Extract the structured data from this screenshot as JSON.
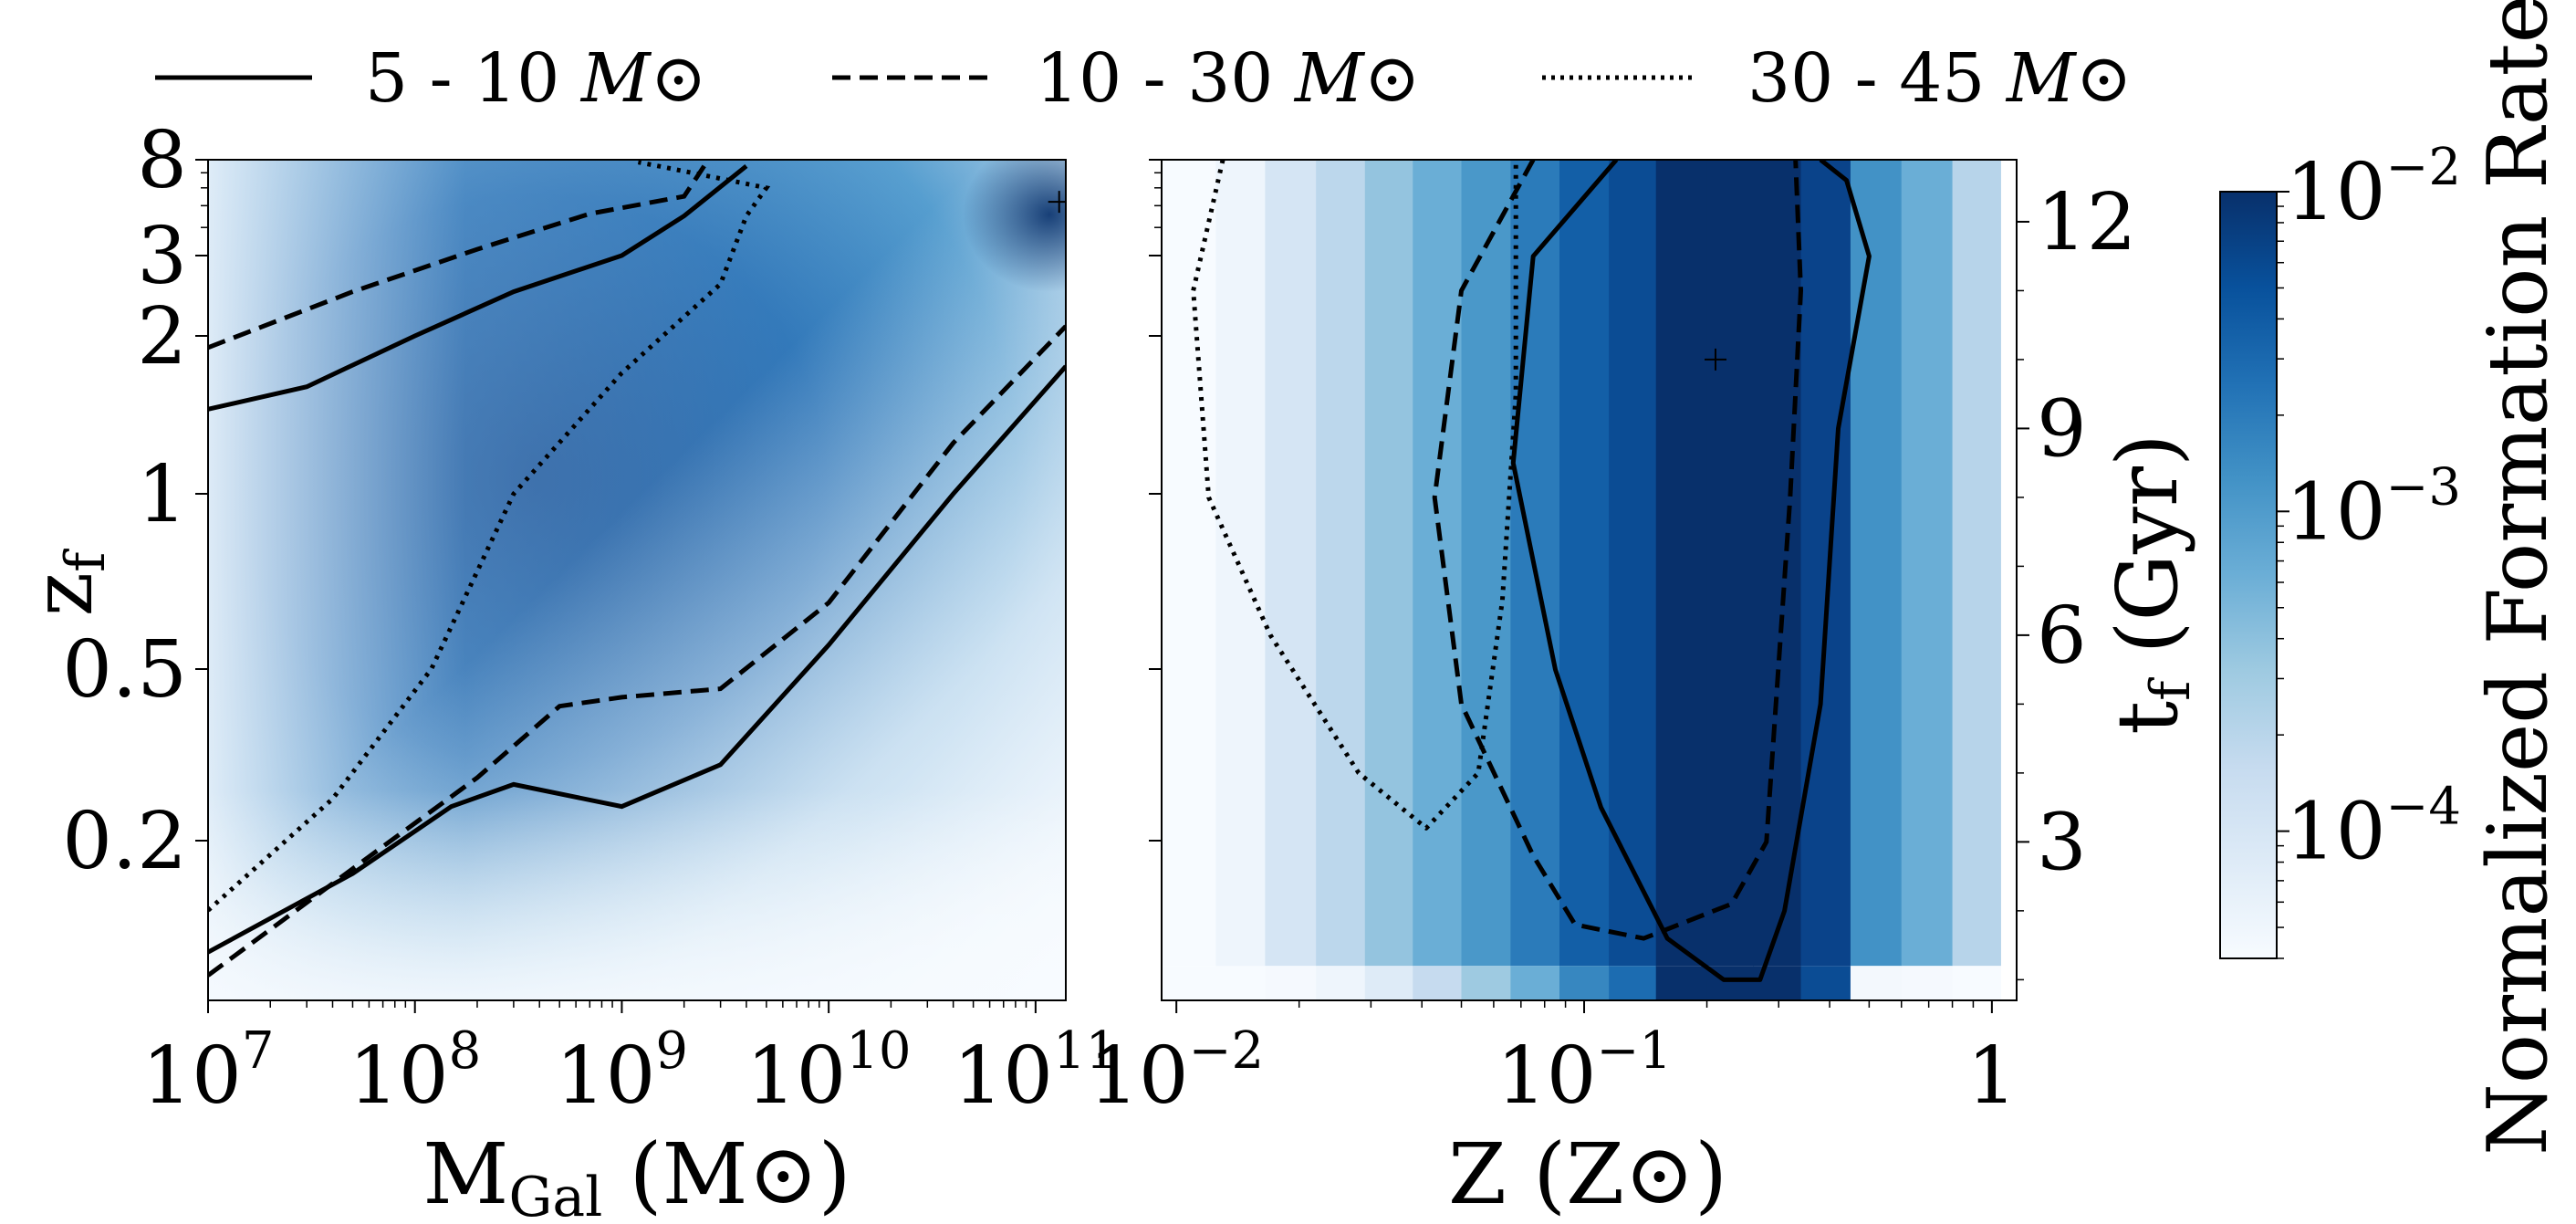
{
  "chart_data": [
    {
      "type": "heatmap",
      "panel": "left",
      "xlabel": "M",
      "xlabel_sub": "Gal",
      "xlabel_unit": "(M⊙)",
      "ylabel": "z",
      "ylabel_sub": "f",
      "xscale": "log",
      "xlim": [
        10000000,
        140000000000
      ],
      "ylim": [
        0.12,
        8
      ],
      "x_ticks": [
        {
          "base": "10",
          "exp": "7",
          "value": 10000000
        },
        {
          "base": "10",
          "exp": "8",
          "value": 100000000
        },
        {
          "base": "10",
          "exp": "9",
          "value": 1000000000
        },
        {
          "base": "10",
          "exp": "10",
          "value": 10000000000
        },
        {
          "base": "10",
          "exp": "11",
          "value": 100000000000
        }
      ],
      "y_ticks": [
        "8",
        "3",
        "2",
        "1",
        "0.5",
        "0.2"
      ],
      "peak_marker": "+",
      "contours": [
        {
          "mass_bin": "5 - 10",
          "style": "solid",
          "level": "upper",
          "points": [
            [
              10000000,
              1.45
            ],
            [
              30000000,
              1.6
            ],
            [
              100000000,
              2.0
            ],
            [
              300000000,
              2.5
            ],
            [
              1000000000,
              3.0
            ],
            [
              2000000000,
              4.5
            ],
            [
              4000000000,
              7.5
            ]
          ]
        },
        {
          "mass_bin": "5 - 10",
          "style": "solid",
          "level": "lower",
          "points": [
            [
              10000000,
              0.14
            ],
            [
              50000000,
              0.18
            ],
            [
              150000000,
              0.24
            ],
            [
              300000000,
              0.27
            ],
            [
              1000000000,
              0.24
            ],
            [
              3000000000,
              0.3
            ],
            [
              10000000000,
              0.55
            ],
            [
              40000000000,
              1.0
            ],
            [
              140000000000,
              1.75
            ]
          ]
        },
        {
          "mass_bin": "10 - 30",
          "style": "dashed",
          "level": "upper",
          "points": [
            [
              10000000,
              1.9
            ],
            [
              50000000,
              2.5
            ],
            [
              200000000,
              3.2
            ],
            [
              700000000,
              4.6
            ],
            [
              2000000000,
              5.5
            ],
            [
              2500000000,
              7.5
            ]
          ]
        },
        {
          "mass_bin": "10 - 30",
          "style": "dashed",
          "level": "lower",
          "points": [
            [
              10000000,
              0.13
            ],
            [
              60000000,
              0.19
            ],
            [
              200000000,
              0.28
            ],
            [
              500000000,
              0.41
            ],
            [
              1000000000,
              0.43
            ],
            [
              3000000000,
              0.45
            ],
            [
              10000000000,
              0.65
            ],
            [
              40000000000,
              1.25
            ],
            [
              140000000000,
              2.1
            ]
          ]
        },
        {
          "mass_bin": "30 - 45",
          "style": "dotted",
          "level": "outer",
          "points": [
            [
              10000000,
              0.16
            ],
            [
              40000000,
              0.25
            ],
            [
              120000000,
              0.5
            ],
            [
              300000000,
              1.0
            ],
            [
              1000000000,
              1.7
            ],
            [
              3000000000,
              2.6
            ],
            [
              4000000000,
              4.5
            ],
            [
              5000000000,
              6.0
            ],
            [
              1500000000,
              7.5
            ],
            [
              1200000000,
              7.8
            ]
          ]
        }
      ]
    },
    {
      "type": "heatmap",
      "panel": "right",
      "xlabel": "Z",
      "xlabel_unit": "(Z⊙)",
      "ylabel_right": "t",
      "ylabel_right_sub": "f",
      "ylabel_right_unit": "(Gyr)",
      "xscale": "log",
      "xlim": [
        0.0092,
        1.15
      ],
      "ylim_gyr": [
        0.7,
        12.9
      ],
      "x_ticks": [
        {
          "base": "10",
          "exp": "−2",
          "value": 0.01
        },
        {
          "base": "10",
          "exp": "−1",
          "value": 0.1
        },
        {
          "base": "1",
          "exp": "",
          "value": 1
        }
      ],
      "y_right_ticks": [
        {
          "label": "12",
          "value": 12
        },
        {
          "label": "9",
          "value": 9
        },
        {
          "label": "6",
          "value": 6
        },
        {
          "label": "3",
          "value": 3
        }
      ],
      "peak_marker": "+",
      "contours": [
        {
          "mass_bin": "5 - 10",
          "style": "solid",
          "points": [
            [
              0.12,
              12.9
            ],
            [
              0.075,
              11.5
            ],
            [
              0.067,
              8.5
            ],
            [
              0.085,
              5.5
            ],
            [
              0.11,
              3.5
            ],
            [
              0.16,
              1.6
            ],
            [
              0.22,
              1.0
            ],
            [
              0.27,
              1.0
            ],
            [
              0.31,
              2.0
            ],
            [
              0.38,
              5.0
            ],
            [
              0.42,
              9.0
            ],
            [
              0.5,
              11.5
            ],
            [
              0.44,
              12.6
            ],
            [
              0.38,
              12.9
            ]
          ]
        },
        {
          "mass_bin": "10 - 30",
          "style": "dashed",
          "points": [
            [
              0.075,
              12.9
            ],
            [
              0.05,
              11.0
            ],
            [
              0.043,
              8.0
            ],
            [
              0.05,
              5.0
            ],
            [
              0.075,
              2.8
            ],
            [
              0.095,
              1.8
            ],
            [
              0.14,
              1.6
            ],
            [
              0.23,
              2.1
            ],
            [
              0.28,
              3.0
            ],
            [
              0.32,
              8.0
            ],
            [
              0.34,
              11.0
            ],
            [
              0.33,
              12.9
            ]
          ]
        },
        {
          "mass_bin": "30 - 45",
          "style": "dotted",
          "points": [
            [
              0.013,
              12.9
            ],
            [
              0.011,
              11.0
            ],
            [
              0.012,
              8.0
            ],
            [
              0.017,
              6.0
            ],
            [
              0.028,
              4.0
            ],
            [
              0.041,
              3.2
            ],
            [
              0.055,
              4.0
            ],
            [
              0.063,
              6.5
            ],
            [
              0.068,
              9.5
            ],
            [
              0.068,
              12.9
            ]
          ]
        }
      ]
    }
  ],
  "legend": [
    {
      "style": "solid",
      "label": "5 - 10",
      "unit": "M⊙"
    },
    {
      "style": "dashed",
      "label": "10 - 30",
      "unit": "M⊙"
    },
    {
      "style": "dotted",
      "label": "30 - 45",
      "unit": "M⊙"
    }
  ],
  "colorbar": {
    "label": "Normalized Formation Rate",
    "scale": "log",
    "range": [
      4e-05,
      0.01
    ],
    "ticks": [
      {
        "base": "10",
        "exp": "−2",
        "value": 0.01
      },
      {
        "base": "10",
        "exp": "−3",
        "value": 0.001
      },
      {
        "base": "10",
        "exp": "−4",
        "value": 0.0001
      }
    ],
    "color_low": "#f7fbff",
    "color_high": "#08306b"
  }
}
